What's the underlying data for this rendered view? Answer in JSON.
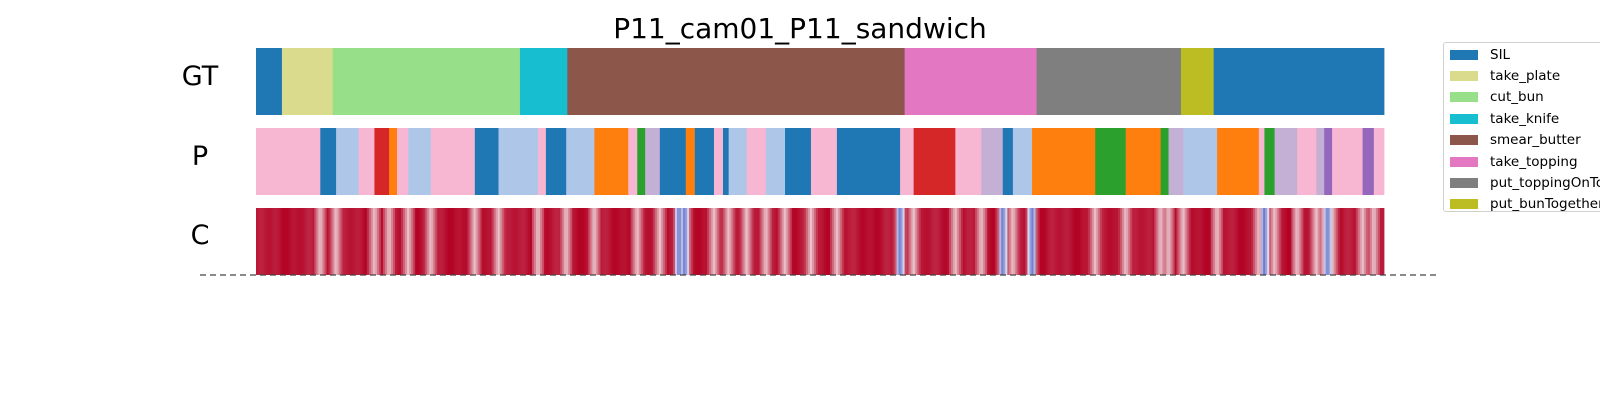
{
  "chart_data": {
    "type": "action-segmentation",
    "title": "P11_cam01_P11_sandwich",
    "rows": [
      "GT",
      "P",
      "C"
    ],
    "legend": [
      "SIL",
      "take_plate",
      "cut_bun",
      "take_knife",
      "smear_butter",
      "take_topping",
      "put_toppingOnTop",
      "put_bunTogether"
    ],
    "colors": {
      "SIL": "#1f77b4",
      "take_plate": "#dbdb8d",
      "cut_bun": "#98df8a",
      "take_knife": "#17becf",
      "smear_butter": "#8c564b",
      "take_topping": "#e377c2",
      "put_toppingOnTop": "#7f7f7f",
      "put_bunTogether": "#bcbd22",
      "p_light_blue": "#aec7e8",
      "p_pink": "#f7b6d2",
      "p_red": "#d62728",
      "p_orange": "#ff7f0e",
      "p_green": "#2ca02c",
      "p_lavender": "#c5b0d5",
      "p_purple": "#9467bd"
    },
    "gt_segments": [
      {
        "label": "SIL",
        "start": 0.0,
        "end": 2.3
      },
      {
        "label": "take_plate",
        "start": 2.3,
        "end": 6.8
      },
      {
        "label": "cut_bun",
        "start": 6.8,
        "end": 23.4
      },
      {
        "label": "take_knife",
        "start": 23.4,
        "end": 27.6
      },
      {
        "label": "smear_butter",
        "start": 27.6,
        "end": 57.5
      },
      {
        "label": "take_topping",
        "start": 57.5,
        "end": 69.2
      },
      {
        "label": "put_toppingOnTop",
        "start": 69.2,
        "end": 82.0
      },
      {
        "label": "put_bunTogether",
        "start": 82.0,
        "end": 84.9
      },
      {
        "label": "SIL",
        "start": 84.9,
        "end": 100.0
      }
    ],
    "pred_segments": [
      {
        "color": "p_pink",
        "start": 0.0,
        "end": 5.7
      },
      {
        "color": "SIL",
        "start": 5.7,
        "end": 7.1
      },
      {
        "color": "p_light_blue",
        "start": 7.1,
        "end": 9.1
      },
      {
        "color": "p_pink",
        "start": 9.1,
        "end": 10.5
      },
      {
        "color": "p_red",
        "start": 10.5,
        "end": 11.8
      },
      {
        "color": "p_orange",
        "start": 11.8,
        "end": 12.5
      },
      {
        "color": "p_pink",
        "start": 12.5,
        "end": 13.5
      },
      {
        "color": "p_light_blue",
        "start": 13.5,
        "end": 15.5
      },
      {
        "color": "p_pink",
        "start": 15.5,
        "end": 19.4
      },
      {
        "color": "SIL",
        "start": 19.4,
        "end": 21.5
      },
      {
        "color": "p_light_blue",
        "start": 21.5,
        "end": 25.0
      },
      {
        "color": "p_pink",
        "start": 25.0,
        "end": 25.7
      },
      {
        "color": "SIL",
        "start": 25.7,
        "end": 27.5
      },
      {
        "color": "p_light_blue",
        "start": 27.5,
        "end": 30.0
      },
      {
        "color": "p_orange",
        "start": 30.0,
        "end": 33.0
      },
      {
        "color": "p_pink",
        "start": 33.0,
        "end": 33.8
      },
      {
        "color": "p_green",
        "start": 33.8,
        "end": 34.5
      },
      {
        "color": "p_lavender",
        "start": 34.5,
        "end": 35.8
      },
      {
        "color": "SIL",
        "start": 35.8,
        "end": 38.1
      },
      {
        "color": "p_orange",
        "start": 38.1,
        "end": 38.9
      },
      {
        "color": "SIL",
        "start": 38.9,
        "end": 40.6
      },
      {
        "color": "p_pink",
        "start": 40.6,
        "end": 41.4
      },
      {
        "color": "SIL",
        "start": 41.4,
        "end": 41.9
      },
      {
        "color": "p_light_blue",
        "start": 41.9,
        "end": 43.5
      },
      {
        "color": "p_pink",
        "start": 43.5,
        "end": 45.2
      },
      {
        "color": "p_light_blue",
        "start": 45.2,
        "end": 46.9
      },
      {
        "color": "SIL",
        "start": 46.9,
        "end": 49.2
      },
      {
        "color": "p_pink",
        "start": 49.2,
        "end": 51.5
      },
      {
        "color": "SIL",
        "start": 51.5,
        "end": 57.1
      },
      {
        "color": "p_pink",
        "start": 57.1,
        "end": 58.3
      },
      {
        "color": "p_red",
        "start": 58.3,
        "end": 62.0
      },
      {
        "color": "p_pink",
        "start": 62.0,
        "end": 64.3
      },
      {
        "color": "p_lavender",
        "start": 64.3,
        "end": 66.2
      },
      {
        "color": "SIL",
        "start": 66.2,
        "end": 67.1
      },
      {
        "color": "p_light_blue",
        "start": 67.1,
        "end": 68.8
      },
      {
        "color": "p_orange",
        "start": 68.8,
        "end": 74.4
      },
      {
        "color": "p_green",
        "start": 74.4,
        "end": 77.1
      },
      {
        "color": "p_orange",
        "start": 77.1,
        "end": 80.2
      },
      {
        "color": "p_green",
        "start": 80.2,
        "end": 80.9
      },
      {
        "color": "p_lavender",
        "start": 80.9,
        "end": 82.2
      },
      {
        "color": "p_light_blue",
        "start": 82.2,
        "end": 85.2
      },
      {
        "color": "p_orange",
        "start": 85.2,
        "end": 88.9
      },
      {
        "color": "p_pink",
        "start": 88.9,
        "end": 89.4
      },
      {
        "color": "p_green",
        "start": 89.4,
        "end": 90.3
      },
      {
        "color": "p_lavender",
        "start": 90.3,
        "end": 92.3
      },
      {
        "color": "p_pink",
        "start": 92.3,
        "end": 94.0
      },
      {
        "color": "p_lavender",
        "start": 94.0,
        "end": 94.7
      },
      {
        "color": "p_purple",
        "start": 94.7,
        "end": 95.4
      },
      {
        "color": "p_pink",
        "start": 95.4,
        "end": 98.1
      },
      {
        "color": "p_purple",
        "start": 98.1,
        "end": 99.1
      },
      {
        "color": "p_pink",
        "start": 99.1,
        "end": 100.0
      }
    ],
    "confidence_color_range": [
      "#3b4cc0",
      "#f7f7f7",
      "#b40426"
    ],
    "confidence_boundary_dips": [
      5.7,
      7.1,
      10.5,
      11.8,
      13.5,
      15.5,
      19.4,
      21.5,
      25.0,
      27.5,
      30.0,
      33.8,
      35.8,
      37.5,
      38.1,
      40.6,
      41.9,
      43.5,
      45.2,
      46.9,
      49.2,
      51.5,
      57.1,
      58.3,
      62.0,
      64.3,
      66.2,
      67.1,
      68.8,
      74.4,
      77.1,
      80.2,
      80.9,
      82.2,
      85.2,
      88.9,
      89.4,
      90.3,
      92.3,
      94.0,
      94.7,
      95.4,
      98.1,
      99.1
    ],
    "confidence_strong_dips": [
      37.5,
      38.0,
      57.1,
      66.2,
      68.8,
      89.4,
      95.0
    ],
    "x_range": [
      0,
      100
    ]
  }
}
